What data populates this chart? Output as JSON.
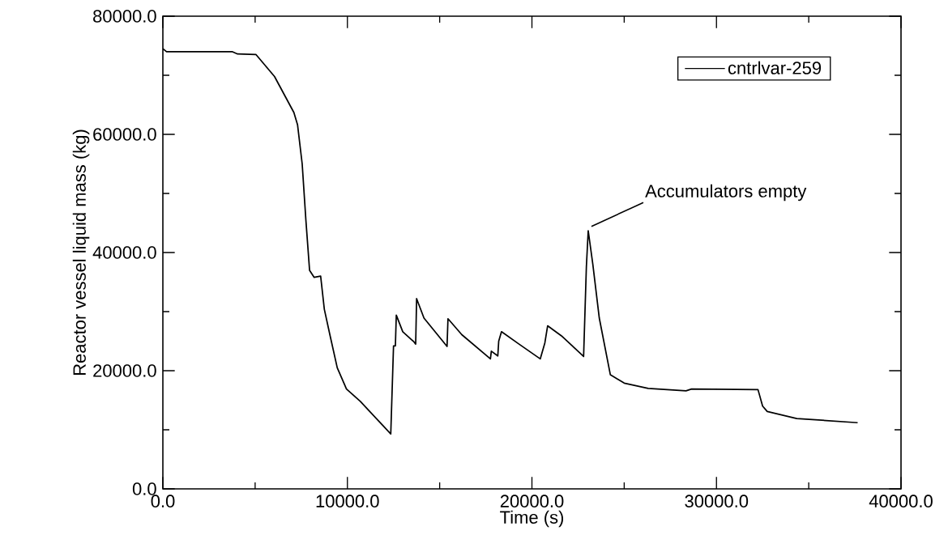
{
  "chart_data": {
    "type": "line",
    "xlabel": "Time (s)",
    "ylabel": "Reactor vessel liquid mass (kg)",
    "xlim": [
      0,
      40000
    ],
    "ylim": [
      0,
      80000
    ],
    "xticks": [
      {
        "value": 0,
        "label": "0.0"
      },
      {
        "value": 5000,
        "label": null
      },
      {
        "value": 10000,
        "label": "10000.0"
      },
      {
        "value": 15000,
        "label": null
      },
      {
        "value": 20000,
        "label": "20000.0"
      },
      {
        "value": 25000,
        "label": null
      },
      {
        "value": 30000,
        "label": "30000.0"
      },
      {
        "value": 35000,
        "label": null
      },
      {
        "value": 40000,
        "label": "40000.0"
      }
    ],
    "yticks": [
      {
        "value": 0,
        "label": "0.0"
      },
      {
        "value": 10000,
        "label": null
      },
      {
        "value": 20000,
        "label": "20000.0"
      },
      {
        "value": 30000,
        "label": null
      },
      {
        "value": 40000,
        "label": "40000.0"
      },
      {
        "value": 50000,
        "label": null
      },
      {
        "value": 60000,
        "label": "60000.0"
      },
      {
        "value": 70000,
        "label": null
      },
      {
        "value": 80000,
        "label": "80000.0"
      }
    ],
    "legend": "top right",
    "line_style": "solid",
    "annotations": [
      {
        "text": "Accumulators empty",
        "x": 23050,
        "y": 43700
      }
    ],
    "series": [
      {
        "name": "cntrlvar-259",
        "color": "#000000",
        "x": [
          0,
          200,
          3750,
          4050,
          5050,
          6050,
          7100,
          7300,
          7550,
          7750,
          7950,
          8200,
          8550,
          8750,
          9050,
          9450,
          9950,
          10700,
          12350,
          12500,
          12600,
          12650,
          13000,
          13600,
          13700,
          13750,
          14150,
          15400,
          15450,
          16200,
          17750,
          17800,
          18150,
          18200,
          18350,
          19300,
          20450,
          20700,
          20850,
          21600,
          22800,
          22950,
          23050,
          23300,
          23650,
          24250,
          25000,
          26300,
          28350,
          28650,
          32250,
          32500,
          32750,
          34350,
          37650
        ],
        "values": [
          74500,
          74000,
          74000,
          73600,
          73500,
          69800,
          63700,
          61600,
          55000,
          45500,
          37000,
          35800,
          36000,
          30400,
          26100,
          20500,
          16900,
          14800,
          9300,
          24200,
          24200,
          29400,
          26600,
          24900,
          24500,
          32200,
          28900,
          24100,
          28800,
          26100,
          22000,
          23300,
          22500,
          25000,
          26600,
          24500,
          22000,
          24700,
          27600,
          25900,
          22400,
          37600,
          43700,
          38000,
          28900,
          19300,
          17900,
          17000,
          16600,
          16900,
          16800,
          14000,
          13100,
          11900,
          11200
        ]
      }
    ]
  }
}
